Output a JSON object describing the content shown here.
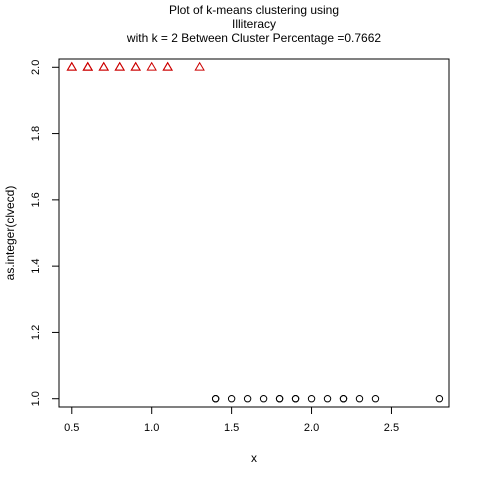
{
  "chart_data": {
    "type": "scatter",
    "title_lines": [
      "Plot of k-means clustering using",
      "Illiteracy",
      "with  k = 2 Between Cluster Percentage =0.7662"
    ],
    "xlabel": "x",
    "ylabel": "as.integer(clvecd)",
    "xlim": [
      0.42,
      2.86
    ],
    "ylim": [
      0.975,
      2.025
    ],
    "xticks": [
      0.5,
      1.0,
      1.5,
      2.0,
      2.5
    ],
    "xtick_labels": [
      "0.5",
      "1.0",
      "1.5",
      "2.0",
      "2.5"
    ],
    "yticks": [
      1.0,
      1.2,
      1.4,
      1.6,
      1.8,
      2.0
    ],
    "ytick_labels": [
      "1.0",
      "1.2",
      "1.4",
      "1.6",
      "1.8",
      "2.0"
    ],
    "grid": false,
    "legend": "none",
    "series": [
      {
        "marker": "triangle",
        "color": "#cc0000",
        "x": [
          0.5,
          0.5,
          0.6,
          0.6,
          0.6,
          0.7,
          0.7,
          0.8,
          0.8,
          0.9,
          0.9,
          1.0,
          1.1,
          1.1,
          1.3
        ],
        "y": [
          2,
          2,
          2,
          2,
          2,
          2,
          2,
          2,
          2,
          2,
          2,
          2,
          2,
          2,
          2
        ]
      },
      {
        "marker": "circle",
        "color": "#000000",
        "x": [
          1.4,
          1.4,
          1.5,
          1.6,
          1.7,
          1.8,
          1.8,
          1.9,
          1.9,
          2.0,
          2.1,
          2.2,
          2.2,
          2.3,
          2.4,
          2.8
        ],
        "y": [
          1,
          1,
          1,
          1,
          1,
          1,
          1,
          1,
          1,
          1,
          1,
          1,
          1,
          1,
          1,
          1
        ]
      }
    ]
  }
}
